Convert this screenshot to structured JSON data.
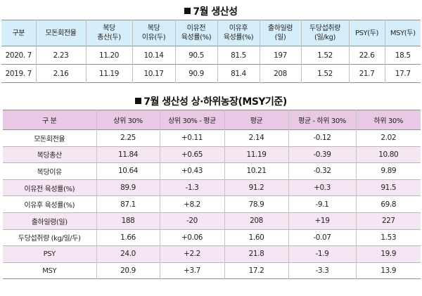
{
  "table1": {
    "title": "7월 생산성",
    "headers": [
      [
        "구분"
      ],
      [
        "모돈회전율"
      ],
      [
        "복당",
        "총산(두)"
      ],
      [
        "복당",
        "이유(두)"
      ],
      [
        "이유전",
        "육성률(%)"
      ],
      [
        "이유후",
        "육성률(%)"
      ],
      [
        "출하일령",
        "(일)"
      ],
      [
        "두당섭취량",
        "(일/kg)"
      ],
      [
        "PSY(두)"
      ],
      [
        "MSY(두)"
      ]
    ],
    "rows": [
      [
        "2020. 7",
        "2.23",
        "11.20",
        "10.14",
        "90.5",
        "81.5",
        "197",
        "1.52",
        "22.6",
        "18.5"
      ],
      [
        "2019. 7",
        "2.16",
        "11.19",
        "10.17",
        "90.9",
        "81.4",
        "208",
        "1.52",
        "21.7",
        "17.7"
      ]
    ]
  },
  "table2": {
    "title": "7월 생산성 상·하위농장(MSY기준)",
    "headers": [
      "구 분",
      "상위 30%",
      "상위 30% - 평균",
      "평균",
      "평균 - 하위 30%",
      "하위 30%"
    ],
    "rows": [
      [
        "모돈회전율",
        "2.25",
        "+0.11",
        "2.14",
        "-0.12",
        "2.02"
      ],
      [
        "복당총산",
        "11.84",
        "+0.65",
        "11.19",
        "-0.39",
        "10.80"
      ],
      [
        "복당이유",
        "10.64",
        "+0.43",
        "10.21",
        "-0.32",
        "9.89"
      ],
      [
        "이유전 육성률(%)",
        "89.9",
        "-1.3",
        "91.2",
        "+0.3",
        "91.5"
      ],
      [
        "이유후 육성률(%)",
        "87.1",
        "+8.2",
        "78.9",
        "-9.1",
        "69.8"
      ],
      [
        "출하일령(일)",
        "188",
        "-20",
        "208",
        "+19",
        "227"
      ],
      [
        "두당섭취량 (kg/일/두)",
        "1.66",
        "+0.06",
        "1.60",
        "-0.07",
        "1.53"
      ],
      [
        "PSY",
        "24.0",
        "+2.2",
        "21.8",
        "-1.9",
        "19.9"
      ],
      [
        "MSY",
        "20.9",
        "+3.7",
        "17.2",
        "-3.3",
        "13.9"
      ]
    ]
  }
}
